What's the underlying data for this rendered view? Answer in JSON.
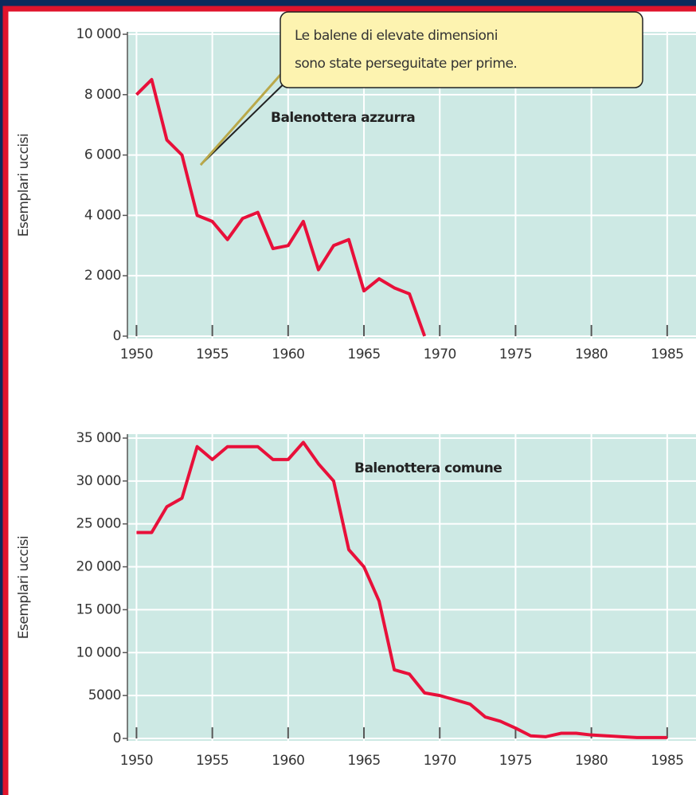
{
  "chart_data": [
    {
      "type": "line",
      "series_label": "Balenottera azzurra",
      "ylabel": "Esemplari uccisi",
      "annotation": [
        "Le balene di elevate dimensioni",
        "sono state perseguitate per prime."
      ],
      "x": [
        1950,
        1951,
        1952,
        1953,
        1954,
        1955,
        1956,
        1957,
        1958,
        1959,
        1960,
        1961,
        1962,
        1963,
        1964,
        1965,
        1966,
        1967,
        1968,
        1969
      ],
      "series": [
        {
          "name": "Balenottera azzurra",
          "color": "#e8103a",
          "values": [
            8000,
            8500,
            6500,
            6000,
            4000,
            3800,
            3200,
            3900,
            4100,
            2900,
            3000,
            3800,
            2200,
            3000,
            3200,
            1500,
            1900,
            1600,
            1400,
            0
          ]
        }
      ],
      "xlim": [
        1949.4,
        1986.9
      ],
      "xticks": [
        1950,
        1955,
        1960,
        1965,
        1970,
        1975,
        1980,
        1985
      ],
      "ylim": [
        -80,
        10080
      ],
      "yticks": [
        0,
        {
          "value": 2000,
          "label": "2 000"
        },
        {
          "value": 4000,
          "label": "4 000"
        },
        {
          "value": 6000,
          "label": "6 000"
        },
        {
          "value": 8000,
          "label": "8 000"
        },
        {
          "value": 10000,
          "label": "10 000"
        }
      ],
      "grid": true
    },
    {
      "type": "line",
      "series_label": "Balenottera comune",
      "ylabel": "Esemplari uccisi",
      "x": [
        1950,
        1951,
        1952,
        1953,
        1954,
        1955,
        1956,
        1957,
        1958,
        1959,
        1960,
        1961,
        1962,
        1963,
        1964,
        1965,
        1966,
        1967,
        1968,
        1969,
        1970,
        1971,
        1972,
        1973,
        1974,
        1975,
        1976,
        1977,
        1978,
        1979,
        1980,
        1981,
        1982,
        1983,
        1984,
        1985
      ],
      "series": [
        {
          "name": "Balenottera comune",
          "color": "#e8103a",
          "values": [
            24000,
            24000,
            27000,
            28000,
            34000,
            32500,
            34000,
            34000,
            34000,
            32500,
            32500,
            34500,
            32000,
            30000,
            22000,
            20000,
            16000,
            8000,
            7500,
            5300,
            5000,
            4500,
            4000,
            2500,
            2000,
            1200,
            300,
            200,
            600,
            600,
            400,
            300,
            200,
            100,
            100,
            100
          ]
        }
      ],
      "xlim": [
        1949.4,
        1986.9
      ],
      "xticks": [
        1950,
        1955,
        1960,
        1965,
        1970,
        1975,
        1980,
        1985
      ],
      "ylim": [
        -280,
        35460
      ],
      "yticks": [
        0,
        5000,
        {
          "value": 10000,
          "label": "10 000"
        },
        {
          "value": 15000,
          "label": "15 000"
        },
        {
          "value": 20000,
          "label": "20 000"
        },
        {
          "value": 25000,
          "label": "25 000"
        },
        {
          "value": 30000,
          "label": "30 000"
        },
        {
          "value": 35000,
          "label": "35 000"
        }
      ],
      "grid": true
    }
  ]
}
